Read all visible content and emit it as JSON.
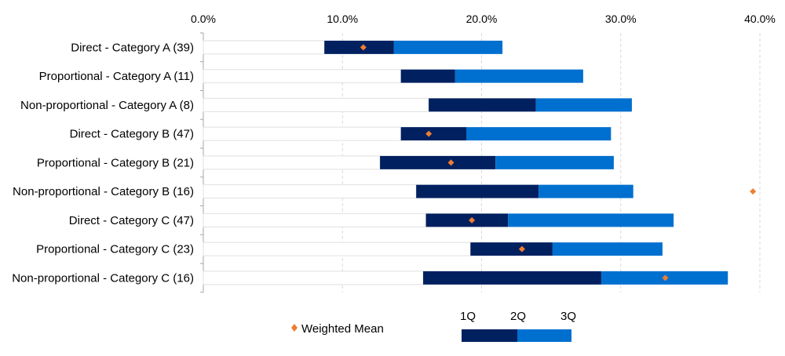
{
  "chart_data": {
    "type": "bar",
    "orientation": "horizontal",
    "stacked_range": true,
    "x_ticks": [
      "0.0%",
      "10.0%",
      "20.0%",
      "30.0%",
      "40.0%"
    ],
    "xlim": [
      0,
      40
    ],
    "x_axis_position": "top",
    "grid": "vertical dashed",
    "categories": [
      "Direct - Category A (39)",
      "Proportional - Category A (11)",
      "Non-proportional - Category A (8)",
      "Direct - Category B (47)",
      "Proportional - Category B (21)",
      "Non-proportional - Category B (16)",
      "Direct - Category C (47)",
      "Proportional - Category C (23)",
      "Non-proportional - Category C (16)"
    ],
    "q1": [
      8.7,
      14.2,
      16.2,
      14.2,
      12.7,
      15.3,
      16.0,
      19.2,
      15.8
    ],
    "q2": [
      13.7,
      18.1,
      23.9,
      18.9,
      21.0,
      24.1,
      21.9,
      25.1,
      28.6
    ],
    "q3": [
      21.5,
      27.3,
      30.8,
      29.3,
      29.5,
      30.9,
      33.8,
      33.0,
      37.7
    ],
    "weighted_mean": [
      11.5,
      null,
      null,
      16.2,
      17.8,
      39.5,
      19.3,
      22.9,
      33.2
    ],
    "legend": {
      "mean_label": "Weighted Mean",
      "q_labels": [
        "1Q",
        "2Q",
        "3Q"
      ]
    },
    "colors": {
      "lower_band": "#002060",
      "upper_band": "#0070D0",
      "mean_marker": "#ED7D31",
      "grid": "#D9D9D9",
      "axis": "#A6A6A6",
      "track_border": "#E0E0E0"
    }
  }
}
